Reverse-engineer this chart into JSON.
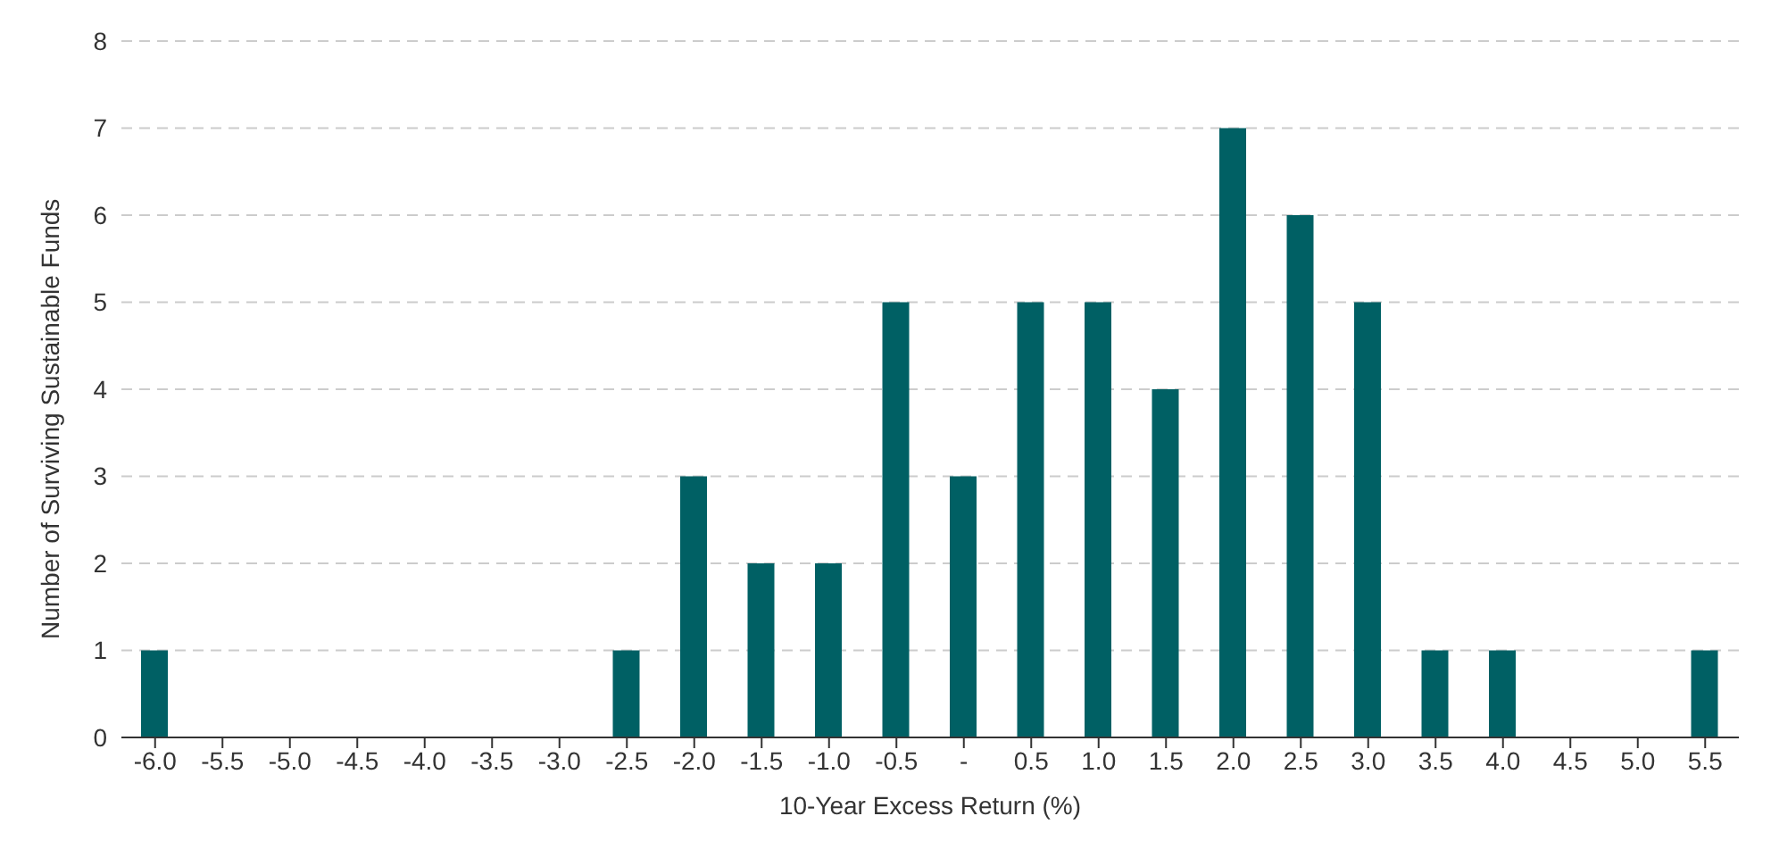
{
  "chart_data": {
    "type": "bar",
    "xlabel": "10-Year Excess Return (%)",
    "ylabel": "Number of Surviving Sustainable Funds",
    "categories": [
      "-6.0",
      "-5.5",
      "-5.0",
      "-4.5",
      "-4.0",
      "-3.5",
      "-3.0",
      "-2.5",
      "-2.0",
      "-1.5",
      "-1.0",
      "-0.5",
      "-",
      "0.5",
      "1.0",
      "1.5",
      "2.0",
      "2.5",
      "3.0",
      "3.5",
      "4.0",
      "4.5",
      "5.0",
      "5.5"
    ],
    "values": [
      1,
      0,
      0,
      0,
      0,
      0,
      0,
      1,
      3,
      2,
      2,
      5,
      3,
      5,
      5,
      4,
      7,
      6,
      5,
      1,
      1,
      0,
      0,
      1
    ],
    "color": "#006064",
    "ylim": [
      0,
      8
    ],
    "yticks": [
      0,
      1,
      2,
      3,
      4,
      5,
      6,
      7,
      8
    ],
    "grid": "y",
    "legend": false
  }
}
